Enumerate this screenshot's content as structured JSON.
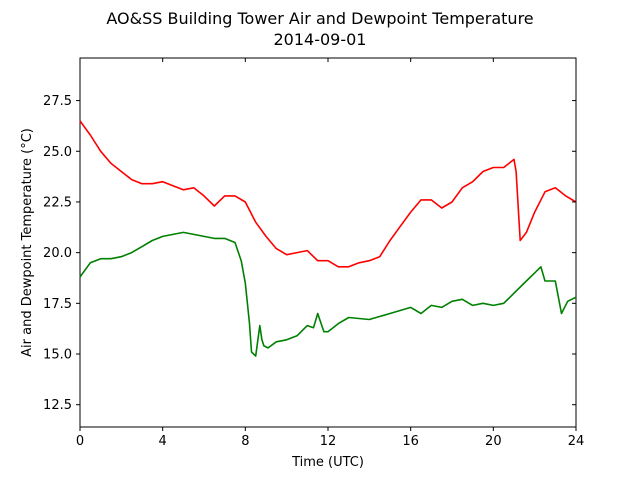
{
  "chart_data": {
    "type": "line",
    "title": "AO&SS Building Tower Air and Dewpoint Temperature",
    "subtitle": "2014-09-01",
    "xlabel": "Time (UTC)",
    "ylabel": "Air and Dewpoint Temperature (°C)",
    "xlim": [
      0,
      24
    ],
    "ylim": [
      11.4,
      29.6
    ],
    "xticks": [
      0,
      4,
      8,
      12,
      16,
      20,
      24
    ],
    "yticks": [
      12.5,
      15.0,
      17.5,
      20.0,
      22.5,
      25.0,
      27.5
    ],
    "xtick_labels": [
      "0",
      "4",
      "8",
      "12",
      "16",
      "20",
      "24"
    ],
    "ytick_labels": [
      "12.5",
      "15.0",
      "17.5",
      "20.0",
      "22.5",
      "25.0",
      "27.5"
    ],
    "grid": false,
    "series": [
      {
        "color": "#ff0000",
        "x": [
          0,
          0.5,
          1,
          1.5,
          2,
          2.5,
          3,
          3.5,
          4,
          4.5,
          5,
          5.5,
          6,
          6.5,
          7,
          7.5,
          8,
          8.5,
          9,
          9.5,
          10,
          10.5,
          11,
          11.5,
          12,
          12.5,
          13,
          13.5,
          14,
          14.5,
          15,
          15.5,
          16,
          16.5,
          17,
          17.5,
          18,
          18.5,
          19,
          19.5,
          20,
          20.5,
          21,
          21.1,
          21.3,
          21.6,
          22,
          22.5,
          23,
          23.5,
          24
        ],
        "y": [
          26.5,
          25.8,
          25.0,
          24.4,
          24.0,
          23.6,
          23.4,
          23.4,
          23.5,
          23.3,
          23.1,
          23.2,
          22.8,
          22.3,
          22.8,
          22.8,
          22.5,
          21.5,
          20.8,
          20.2,
          19.9,
          20.0,
          20.1,
          19.6,
          19.6,
          19.3,
          19.3,
          19.5,
          19.6,
          19.8,
          20.6,
          21.3,
          22.0,
          22.6,
          22.6,
          22.2,
          22.5,
          23.2,
          23.5,
          24.0,
          24.2,
          24.2,
          24.6,
          24.0,
          20.6,
          21.0,
          22.0,
          23.0,
          23.2,
          22.8,
          22.5
        ]
      },
      {
        "color": "#008000",
        "x": [
          0,
          0.5,
          1,
          1.5,
          2,
          2.5,
          3,
          3.5,
          4,
          4.5,
          5,
          5.5,
          6,
          6.5,
          7,
          7.5,
          7.8,
          8.0,
          8.2,
          8.3,
          8.5,
          8.7,
          8.8,
          8.9,
          9.1,
          9.5,
          10,
          10.5,
          11,
          11.3,
          11.5,
          11.8,
          12,
          12.5,
          13,
          14,
          15,
          16,
          16.5,
          17,
          17.5,
          18,
          18.5,
          19,
          19.5,
          20,
          20.5,
          21,
          21.5,
          22,
          22.3,
          22.5,
          23,
          23.3,
          23.6,
          24
        ],
        "y": [
          18.8,
          19.5,
          19.7,
          19.7,
          19.8,
          20.0,
          20.3,
          20.6,
          20.8,
          20.9,
          21.0,
          20.9,
          20.8,
          20.7,
          20.7,
          20.5,
          19.6,
          18.5,
          16.5,
          15.1,
          14.9,
          16.4,
          15.7,
          15.4,
          15.3,
          15.6,
          15.7,
          15.9,
          16.4,
          16.3,
          17.0,
          16.1,
          16.1,
          16.5,
          16.8,
          16.7,
          17.0,
          17.3,
          17.0,
          17.4,
          17.3,
          17.6,
          17.7,
          17.4,
          17.5,
          17.4,
          17.5,
          18.0,
          18.5,
          19.0,
          19.3,
          18.6,
          18.6,
          17.0,
          17.6,
          17.8
        ]
      }
    ]
  }
}
